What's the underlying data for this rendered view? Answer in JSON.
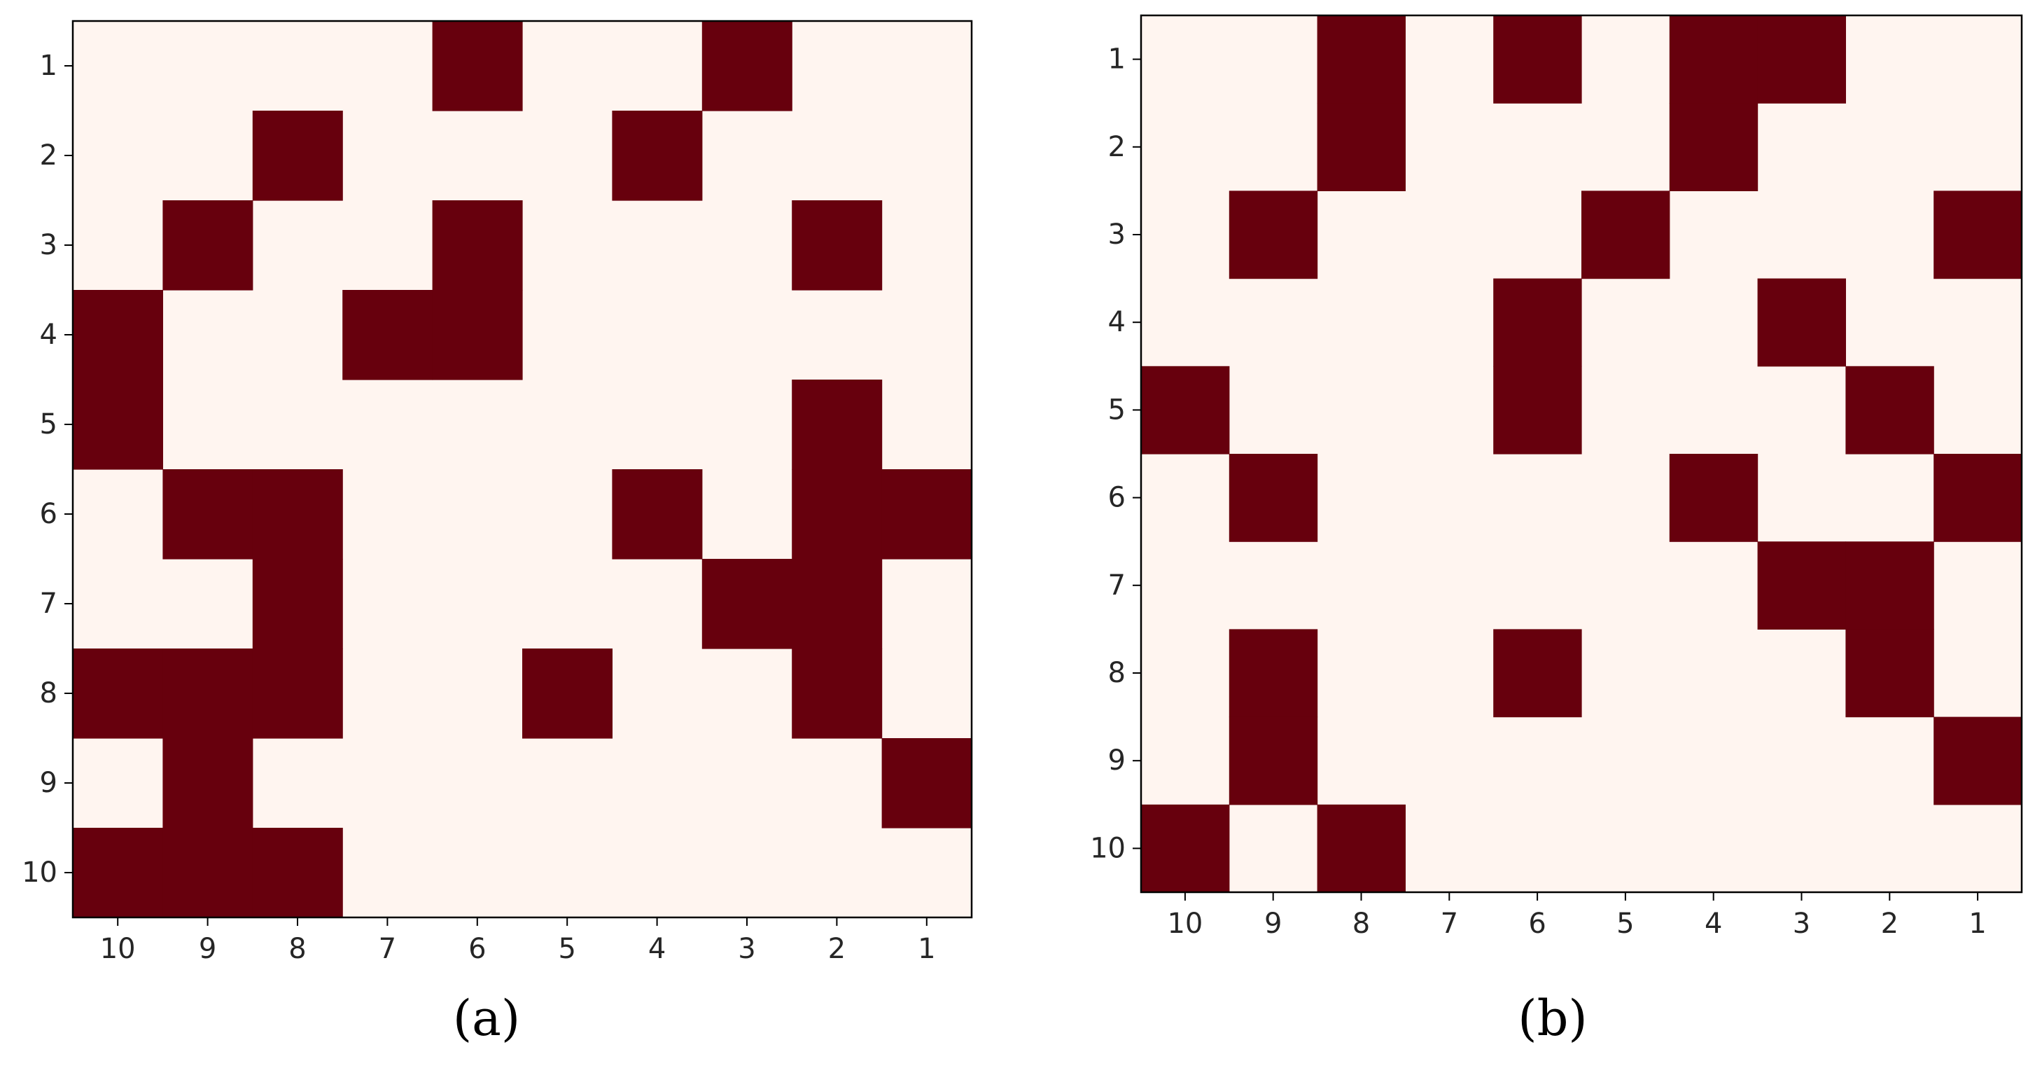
{
  "colors": {
    "filled": "#67000d",
    "empty": "#fff5f0",
    "frame": "#000000"
  },
  "chart_data": [
    {
      "type": "heatmap",
      "panel_label": "(a)",
      "x_categories": [
        "10",
        "9",
        "8",
        "7",
        "6",
        "5",
        "4",
        "3",
        "2",
        "1"
      ],
      "y_categories": [
        "1",
        "2",
        "3",
        "4",
        "5",
        "6",
        "7",
        "8",
        "9",
        "10"
      ],
      "cells": [
        [
          0,
          0,
          0,
          0,
          1,
          0,
          0,
          1,
          0,
          0
        ],
        [
          0,
          0,
          1,
          0,
          0,
          0,
          1,
          0,
          0,
          0
        ],
        [
          0,
          1,
          0,
          0,
          1,
          0,
          0,
          0,
          1,
          0
        ],
        [
          1,
          0,
          0,
          1,
          1,
          0,
          0,
          0,
          0,
          0
        ],
        [
          1,
          0,
          0,
          0,
          0,
          0,
          0,
          0,
          1,
          0
        ],
        [
          0,
          1,
          1,
          0,
          0,
          0,
          1,
          0,
          1,
          1
        ],
        [
          0,
          0,
          1,
          0,
          0,
          0,
          0,
          1,
          1,
          0
        ],
        [
          1,
          1,
          1,
          0,
          0,
          1,
          0,
          0,
          1,
          0
        ],
        [
          0,
          1,
          0,
          0,
          0,
          0,
          0,
          0,
          0,
          1
        ],
        [
          1,
          1,
          1,
          0,
          0,
          0,
          0,
          0,
          0,
          0
        ]
      ]
    },
    {
      "type": "heatmap",
      "panel_label": "(b)",
      "x_categories": [
        "10",
        "9",
        "8",
        "7",
        "6",
        "5",
        "4",
        "3",
        "2",
        "1"
      ],
      "y_categories": [
        "1",
        "2",
        "3",
        "4",
        "5",
        "6",
        "7",
        "8",
        "9",
        "10"
      ],
      "cells": [
        [
          0,
          0,
          1,
          0,
          1,
          0,
          1,
          1,
          0,
          0
        ],
        [
          0,
          0,
          1,
          0,
          0,
          0,
          1,
          0,
          0,
          0
        ],
        [
          0,
          1,
          0,
          0,
          0,
          1,
          0,
          0,
          0,
          1
        ],
        [
          0,
          0,
          0,
          0,
          1,
          0,
          0,
          1,
          0,
          0
        ],
        [
          1,
          0,
          0,
          0,
          1,
          0,
          0,
          0,
          1,
          0
        ],
        [
          0,
          1,
          0,
          0,
          0,
          0,
          1,
          0,
          0,
          1
        ],
        [
          0,
          0,
          0,
          0,
          0,
          0,
          0,
          1,
          1,
          0
        ],
        [
          0,
          1,
          0,
          0,
          1,
          0,
          0,
          0,
          1,
          0
        ],
        [
          0,
          1,
          0,
          0,
          0,
          0,
          0,
          0,
          0,
          1
        ],
        [
          1,
          0,
          1,
          0,
          0,
          0,
          0,
          0,
          0,
          0
        ]
      ]
    }
  ]
}
